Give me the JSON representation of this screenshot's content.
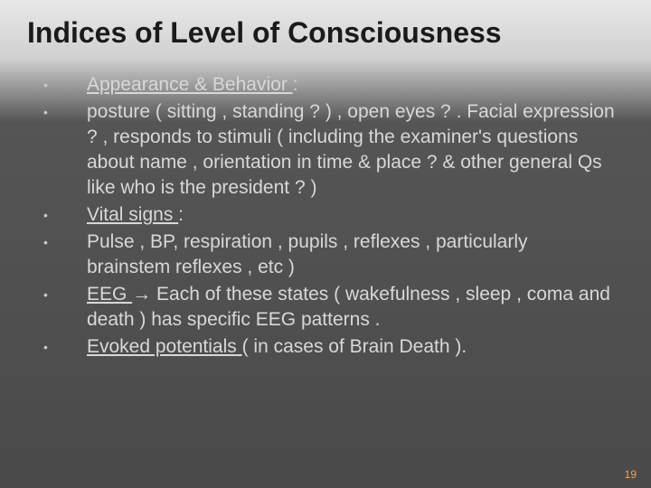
{
  "slide": {
    "title": "Indices  of Level of Consciousness",
    "page_number": "19",
    "background_gradient_stops": [
      "#e8e8e8",
      "#d0d0d0",
      "#555555",
      "#4a4a4a"
    ],
    "title_color": "#1a1a1a",
    "title_fontsize": 32,
    "body_color": "#d8d8d8",
    "body_fontsize": 21,
    "bullet_color": "#c8c8c8",
    "pagenum_color": "#f0a050",
    "bullets": [
      {
        "underlined": "Appearance & Behavior ",
        "rest": ":"
      },
      {
        "plain": " posture ( sitting , standing ? ) , open eyes ? . Facial expression ? , responds to stimuli ( including the examiner's questions about name , orientation in time & place ? & other general Qs like who is the president ? )"
      },
      {
        "underlined": "Vital signs ",
        "rest": ":"
      },
      {
        "plain": " Pulse , BP, respiration , pupils , reflexes , particularly brainstem reflexes , etc )"
      },
      {
        "underlined": "EEG ",
        "rest_pre_arrow": "",
        "arrow": "→",
        "rest": " Each of these states ( wakefulness , sleep , coma and death ) has specific EEG patterns ."
      },
      {
        "underlined": "Evoked potentials ",
        "rest": "( in cases of Brain Death )."
      }
    ]
  }
}
